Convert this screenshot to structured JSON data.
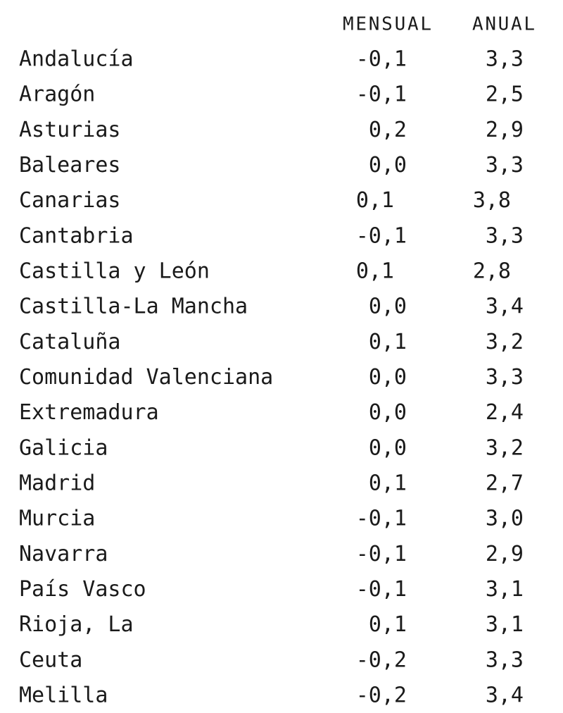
{
  "table": {
    "header": [
      "MENSUAL",
      "ANUAL"
    ],
    "rows": [
      [
        "Andalucía",
        "-0,1",
        "3,3"
      ],
      [
        "Aragón",
        "-0,1",
        "2,5"
      ],
      [
        "Asturias",
        "0,2",
        "2,9"
      ],
      [
        "Baleares",
        "0,0",
        "3,3"
      ],
      [
        "Canarias",
        "0,1",
        "3,8"
      ],
      [
        "Cantabria",
        "-0,1",
        "3,3"
      ],
      [
        "Castilla y León",
        "0,1",
        "2,8"
      ],
      [
        "Castilla-La Mancha",
        "0,0",
        "3,4"
      ],
      [
        "Cataluña",
        "0,1",
        "3,2"
      ],
      [
        "Comunidad Valenciana",
        "0,0",
        "3,3"
      ],
      [
        "Extremadura",
        "0,0",
        "2,4"
      ],
      [
        "Galicia",
        "0,0",
        "3,2"
      ],
      [
        "Madrid",
        "0,1",
        "2,7"
      ],
      [
        "Murcia",
        "-0,1",
        "3,0"
      ],
      [
        "Navarra",
        "-0,1",
        "2,9"
      ],
      [
        "País Vasco",
        "-0,1",
        "3,1"
      ],
      [
        "Rioja, La",
        "0,1",
        "3,1"
      ],
      [
        "Ceuta",
        "-0,2",
        "3,3"
      ],
      [
        "Melilla",
        "-0,2",
        "3,4"
      ]
    ]
  }
}
